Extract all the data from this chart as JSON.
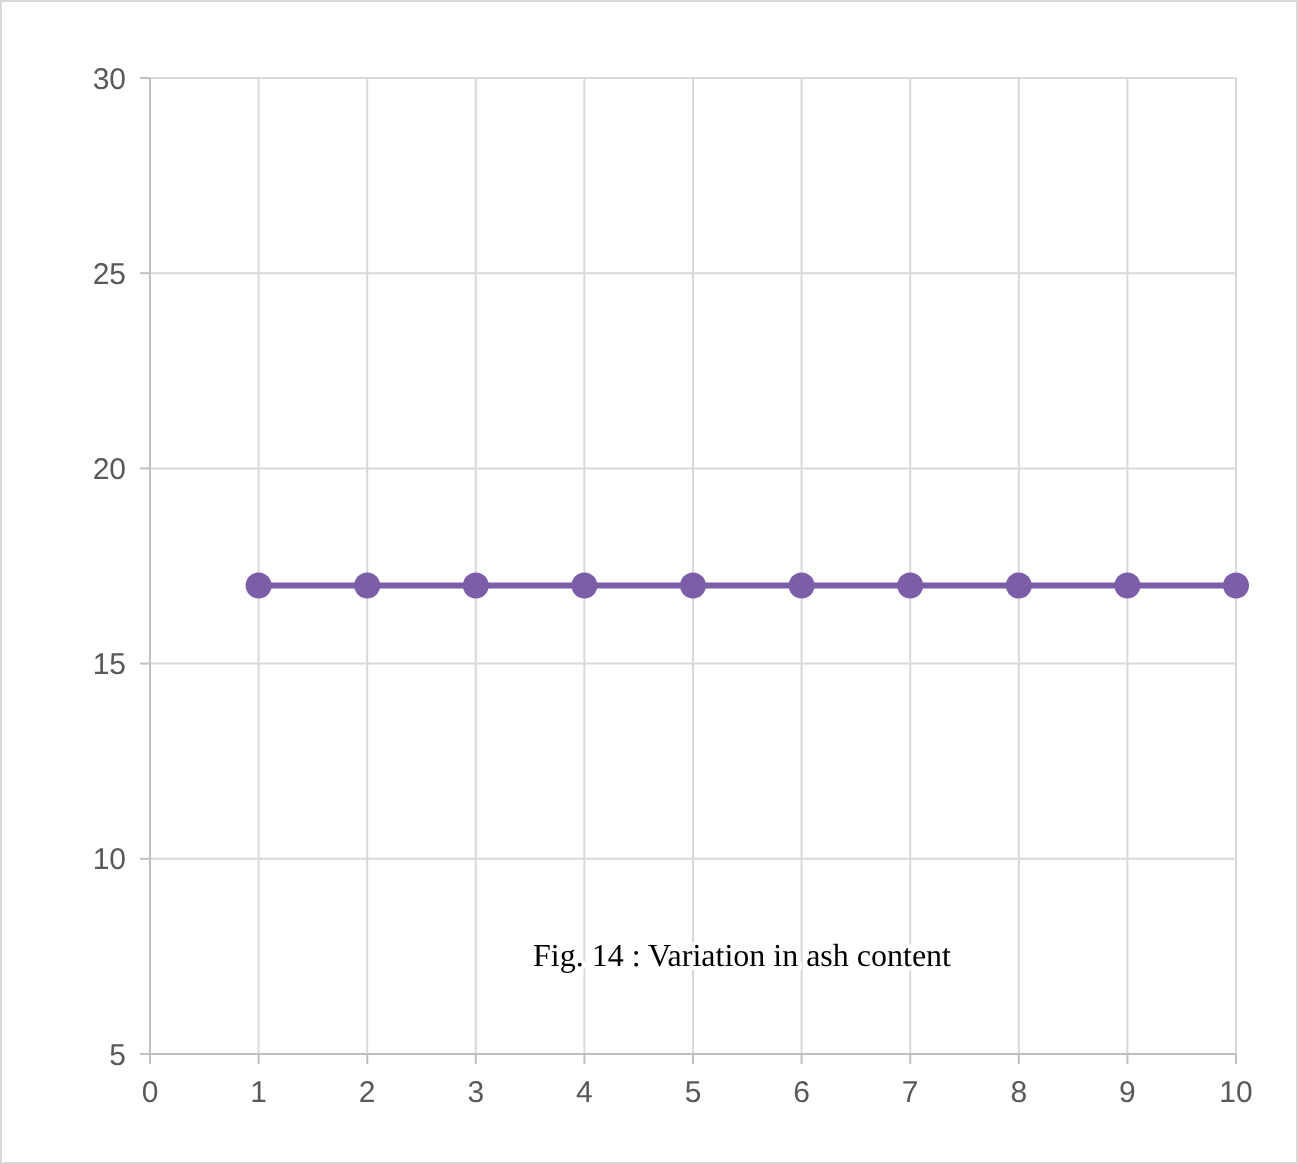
{
  "chart_data": {
    "type": "line",
    "x": [
      1,
      2,
      3,
      4,
      5,
      6,
      7,
      8,
      9,
      10
    ],
    "series": [
      {
        "color": "#7b5ea7",
        "values": [
          17,
          17,
          17,
          17,
          17,
          17,
          17,
          17,
          17,
          17
        ]
      }
    ],
    "xlim": [
      0,
      10
    ],
    "xticks": [
      0,
      1,
      2,
      3,
      4,
      5,
      6,
      7,
      8,
      9,
      10
    ],
    "ylim": [
      5,
      30
    ],
    "yticks": [
      5,
      10,
      15,
      20,
      25,
      30
    ],
    "grid": true,
    "marker": "circle",
    "line_style": "solid",
    "annotations": [
      "Fig. 14 : Variation in ash content"
    ]
  }
}
